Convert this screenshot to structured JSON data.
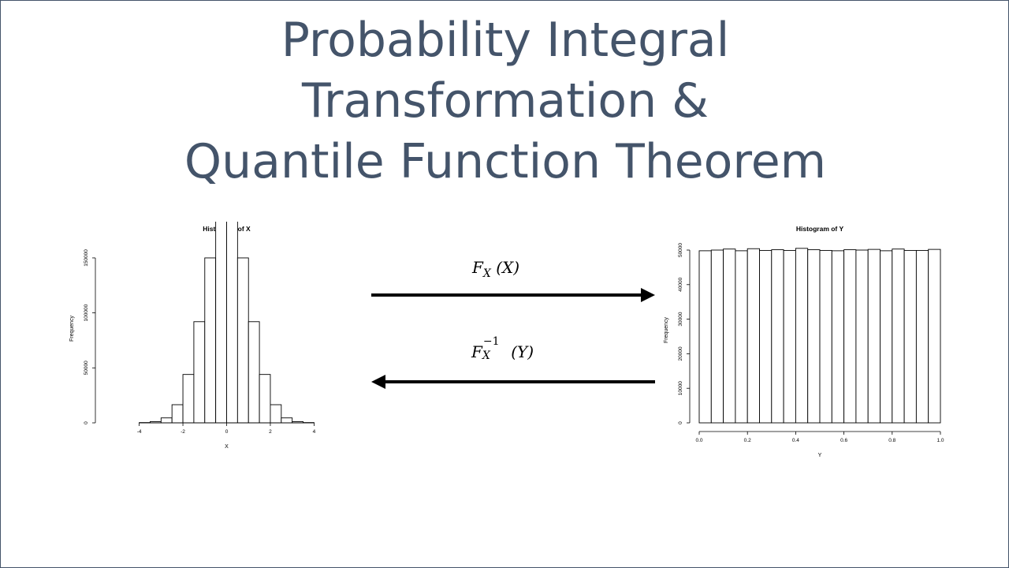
{
  "title": {
    "line1": "Probability Integral",
    "line2": "Transformation &",
    "line3": "Quantile Function Theorem"
  },
  "forward_transform": {
    "symbol": "F",
    "subscript": "X",
    "argument": "(X)",
    "direction": "left-to-right"
  },
  "inverse_transform": {
    "symbol": "F",
    "subscript": "X",
    "superscript": "−1",
    "argument": "(Y)",
    "direction": "right-to-left"
  },
  "chart_data": [
    {
      "type": "bar",
      "title": "Histogram of X",
      "xlabel": "X",
      "ylabel": "Frequency",
      "xlim": [
        -5.5,
        5.5
      ],
      "ylim": [
        0,
        160000
      ],
      "xticks": [
        "-4",
        "-2",
        "0",
        "2",
        "4"
      ],
      "yticks": [
        "0",
        "50000",
        "100000",
        "150000"
      ],
      "bin_edges": [
        -4,
        -3.5,
        -3,
        -2.5,
        -2,
        -1.5,
        -1,
        -0.5,
        0,
        0.5,
        1,
        1.5,
        2,
        2.5,
        3,
        3.5,
        4
      ],
      "values": [
        250,
        1100,
        4500,
        16500,
        44000,
        92000,
        150000,
        191500,
        191000,
        150000,
        92000,
        44000,
        16500,
        4500,
        1100,
        250
      ]
    },
    {
      "type": "bar",
      "title": "Histogram of Y",
      "xlabel": "Y",
      "ylabel": "Frequency",
      "xlim": [
        0,
        1
      ],
      "ylim": [
        0,
        50000
      ],
      "xticks": [
        "0.0",
        "0.2",
        "0.4",
        "0.6",
        "0.8",
        "1.0"
      ],
      "yticks": [
        "0",
        "10000",
        "20000",
        "30000",
        "40000",
        "50000"
      ],
      "bin_edges": [
        0,
        0.05,
        0.1,
        0.15,
        0.2,
        0.25,
        0.3,
        0.35,
        0.4,
        0.45,
        0.5,
        0.55,
        0.6,
        0.65,
        0.7,
        0.75,
        0.8,
        0.85,
        0.9,
        0.95,
        1.0
      ],
      "values": [
        49800,
        50000,
        50300,
        49800,
        50400,
        49900,
        50100,
        49900,
        50500,
        50100,
        49900,
        49800,
        50100,
        50000,
        50200,
        49800,
        50300,
        49900,
        49900,
        50200
      ]
    }
  ]
}
